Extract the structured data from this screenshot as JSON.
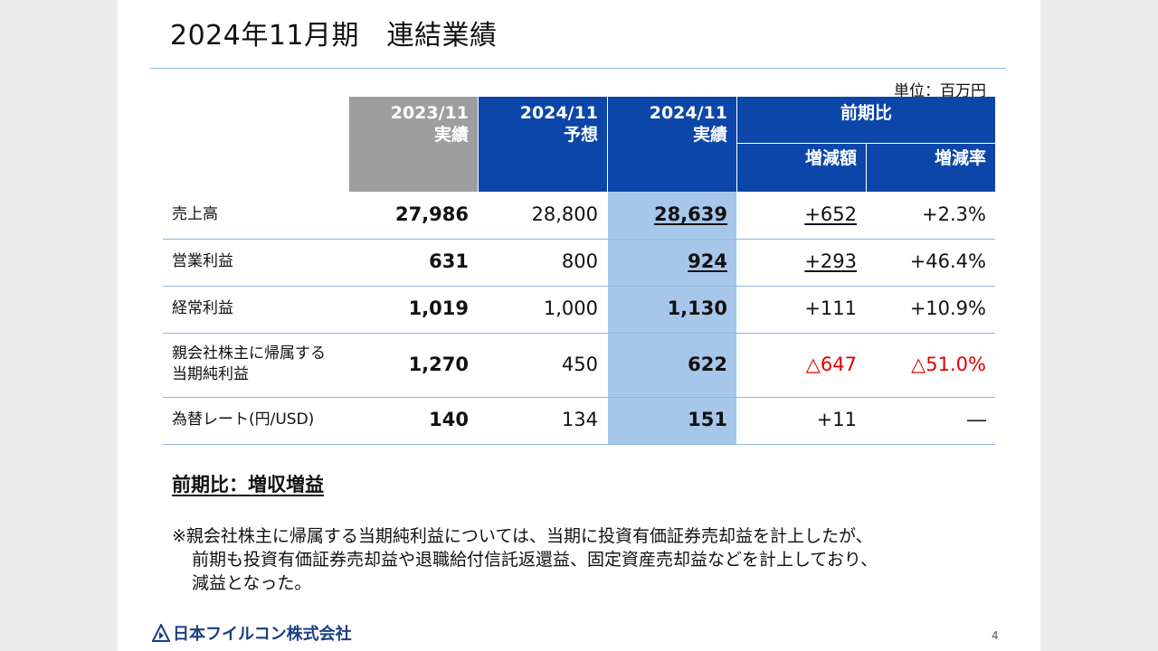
{
  "title": "2024年11月期　連結業績",
  "unit": "単位：百万円",
  "headers": {
    "col2023": [
      "2023/11",
      "実績"
    ],
    "col2024f": [
      "2024/11",
      "予想"
    ],
    "col2024a": [
      "2024/11",
      "実績"
    ],
    "yoy": "前期比",
    "diff": "増減額",
    "rate": "増減率"
  },
  "rows": [
    {
      "label": "売上高",
      "v2023": "27,986",
      "v2024f": "28,800",
      "v2024a": "28,639",
      "diff": "+652",
      "rate": "+2.3%"
    },
    {
      "label": "営業利益",
      "v2023": "631",
      "v2024f": "800",
      "v2024a": "924",
      "diff": "+293",
      "rate": "+46.4%"
    },
    {
      "label": "経常利益",
      "v2023": "1,019",
      "v2024f": "1,000",
      "v2024a": "1,130",
      "diff": "+111",
      "rate": "+10.9%"
    },
    {
      "label": [
        "親会社株主に帰属する",
        "当期純利益"
      ],
      "v2023": "1,270",
      "v2024f": "450",
      "v2024a": "622",
      "diff": "△647",
      "rate": "△51.0%"
    },
    {
      "label": "為替レート(円/USD)",
      "v2023": "140",
      "v2024f": "134",
      "v2024a": "151",
      "diff": "+11",
      "rate": "―"
    }
  ],
  "summary": "前期比：増収増益",
  "note": [
    "※親会社株主に帰属する当期純利益については、当期に投資有価証券売却益を計上したが、",
    "前期も投資有価証券売却益や退職給付信託返還益、固定資産売却益などを計上しており、",
    "減益となった。"
  ],
  "company": "日本フイルコン株式会社",
  "page_number": "4",
  "colors": {
    "header_blue": "#0b46a8",
    "header_grey": "#9e9e9e",
    "highlight": "#a7c7ea",
    "negative": "#e00000"
  },
  "icons": [
    "company-logo-icon"
  ]
}
